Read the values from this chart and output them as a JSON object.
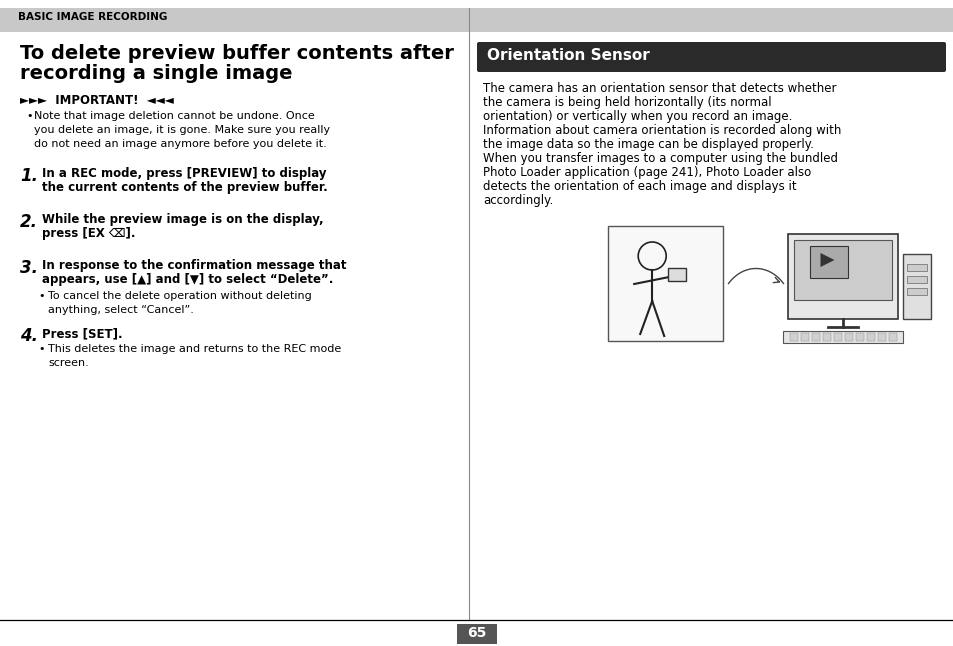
{
  "page_bg": "#ffffff",
  "header_bg": "#c8c8c8",
  "header_text": "BASIC IMAGE RECORDING",
  "divider_color": "#888888",
  "left_title_line1": "To delete preview buffer contents after",
  "left_title_line2": "recording a single image",
  "important_label": "►►►  IMPORTANT!  ◄◄◄",
  "important_bullet": "Note that image deletion cannot be undone. Once\nyou delete an image, it is gone. Make sure you really\ndo not need an image anymore before you delete it.",
  "steps": [
    {
      "num": "1.",
      "bold_line1": "In a REC mode, press [PREVIEW] to display",
      "bold_line2": "the current contents of the preview buffer.",
      "bullet": null
    },
    {
      "num": "2.",
      "bold_line1": "While the preview image is on the display,",
      "bold_line2": "press [EX ⌫].",
      "bullet": null
    },
    {
      "num": "3.",
      "bold_line1": "In response to the confirmation message that",
      "bold_line2": "appears, use [▲] and [▼] to select “Delete”.",
      "bullet": "To cancel the delete operation without deleting\nanything, select “Cancel”."
    },
    {
      "num": "4.",
      "bold_line1": "Press [SET].",
      "bold_line2": null,
      "bullet": "This deletes the image and returns to the REC mode\nscreen."
    }
  ],
  "right_header_text": "Orientation Sensor",
  "right_header_bg": "#2a2a2a",
  "right_header_fg": "#ffffff",
  "right_body_lines": [
    "The camera has an orientation sensor that detects whether",
    "the camera is being held horizontally (its normal",
    "orientation) or vertically when you record an image.",
    "Information about camera orientation is recorded along with",
    "the image data so the image can be displayed properly.",
    "When you transfer images to a computer using the bundled",
    "Photo Loader application (page 241), Photo Loader also",
    "detects the orientation of each image and displays it",
    "accordingly."
  ],
  "page_number": "65",
  "page_number_bg": "#555555",
  "page_number_fg": "#ffffff"
}
